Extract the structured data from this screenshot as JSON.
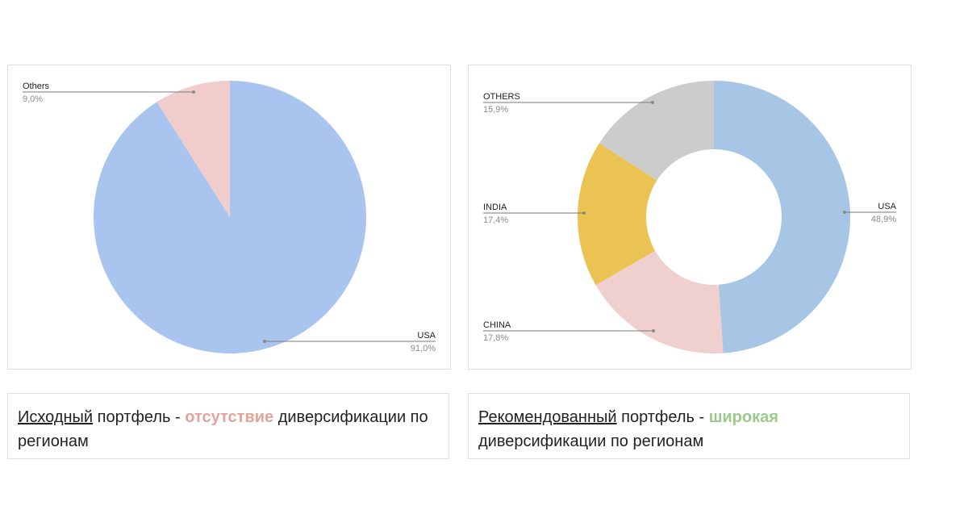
{
  "charts": {
    "left": {
      "type": "pie",
      "slices": [
        {
          "label": "USA",
          "value": 91.0,
          "value_label": "91,0%",
          "color": "#aac4f0"
        },
        {
          "label": "Others",
          "value": 9.0,
          "value_label": "9,0%",
          "color": "#f0cdcb"
        }
      ]
    },
    "right": {
      "type": "pie",
      "donut": true,
      "slices": [
        {
          "label": "USA",
          "value": 48.9,
          "value_label": "48,9%",
          "color": "#a7c5e4"
        },
        {
          "label": "CHINA",
          "value": 17.8,
          "value_label": "17,8%",
          "color": "#f0cfcf"
        },
        {
          "label": "INDIA",
          "value": 17.4,
          "value_label": "17,4%",
          "color": "#eac352"
        },
        {
          "label": "OTHERS",
          "value": 15.9,
          "value_label": "15,9%",
          "color": "#cccccc"
        }
      ]
    }
  },
  "chart_data": [
    {
      "type": "pie",
      "categories": [
        "USA",
        "Others"
      ],
      "values": [
        91.0,
        9.0
      ],
      "value_labels": [
        "91,0%",
        "9,0%"
      ],
      "title": ""
    },
    {
      "type": "pie",
      "categories": [
        "USA",
        "CHINA",
        "INDIA",
        "OTHERS"
      ],
      "values": [
        48.9,
        17.8,
        17.4,
        15.9
      ],
      "value_labels": [
        "48,9%",
        "17,8%",
        "17,4%",
        "15,9%"
      ],
      "title": ""
    }
  ],
  "captions": {
    "left": {
      "underlined": "Исходный",
      "text1": " портфель - ",
      "highlight": "отсутствие",
      "text2": " диверсификации по регионам"
    },
    "right": {
      "underlined": "Рекомендованный",
      "text1": " портфель - ",
      "highlight": "широкая",
      "text2": " диверсификации по регионам"
    }
  }
}
